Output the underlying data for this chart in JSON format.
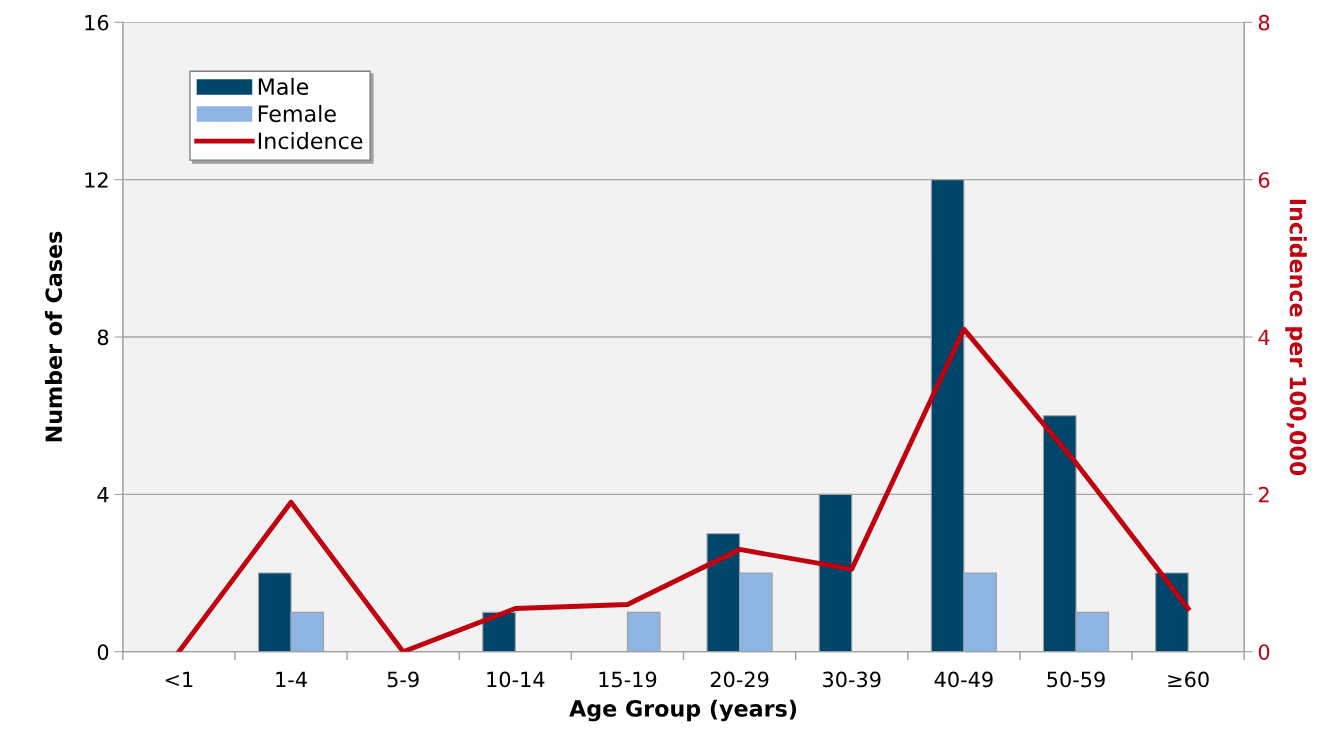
{
  "chart_data": {
    "type": "bar",
    "xlabel": "Age Group (years)",
    "ylabel": "Number of Cases",
    "y2label": "Incidence per 100,000",
    "categories": [
      "<1",
      "1-4",
      "5-9",
      "10-14",
      "15-19",
      "20-29",
      "30-39",
      "40-49",
      "50-59",
      "≥60"
    ],
    "series": [
      {
        "name": "Male",
        "color": "#00466a",
        "values": [
          0,
          2,
          0,
          1,
          0,
          3,
          4,
          12,
          6,
          2
        ]
      },
      {
        "name": "Female",
        "color": "#8db4e2",
        "values": [
          0,
          1,
          0,
          0,
          1,
          2,
          0,
          2,
          1,
          0
        ]
      },
      {
        "name": "Incidence",
        "type": "line",
        "axis": "y2",
        "color": "#c0000f",
        "values": [
          0,
          1.9,
          0,
          0.55,
          0.6,
          1.3,
          1.05,
          4.1,
          2.4,
          0.55
        ]
      }
    ],
    "ylim": [
      0,
      16
    ],
    "yticks": [
      0,
      4,
      8,
      12,
      16
    ],
    "y2lim": [
      0,
      8
    ],
    "y2ticks": [
      0,
      2,
      4,
      6,
      8
    ],
    "grid": "y",
    "legend": "top left",
    "marker": "none",
    "line_style": "solid"
  }
}
